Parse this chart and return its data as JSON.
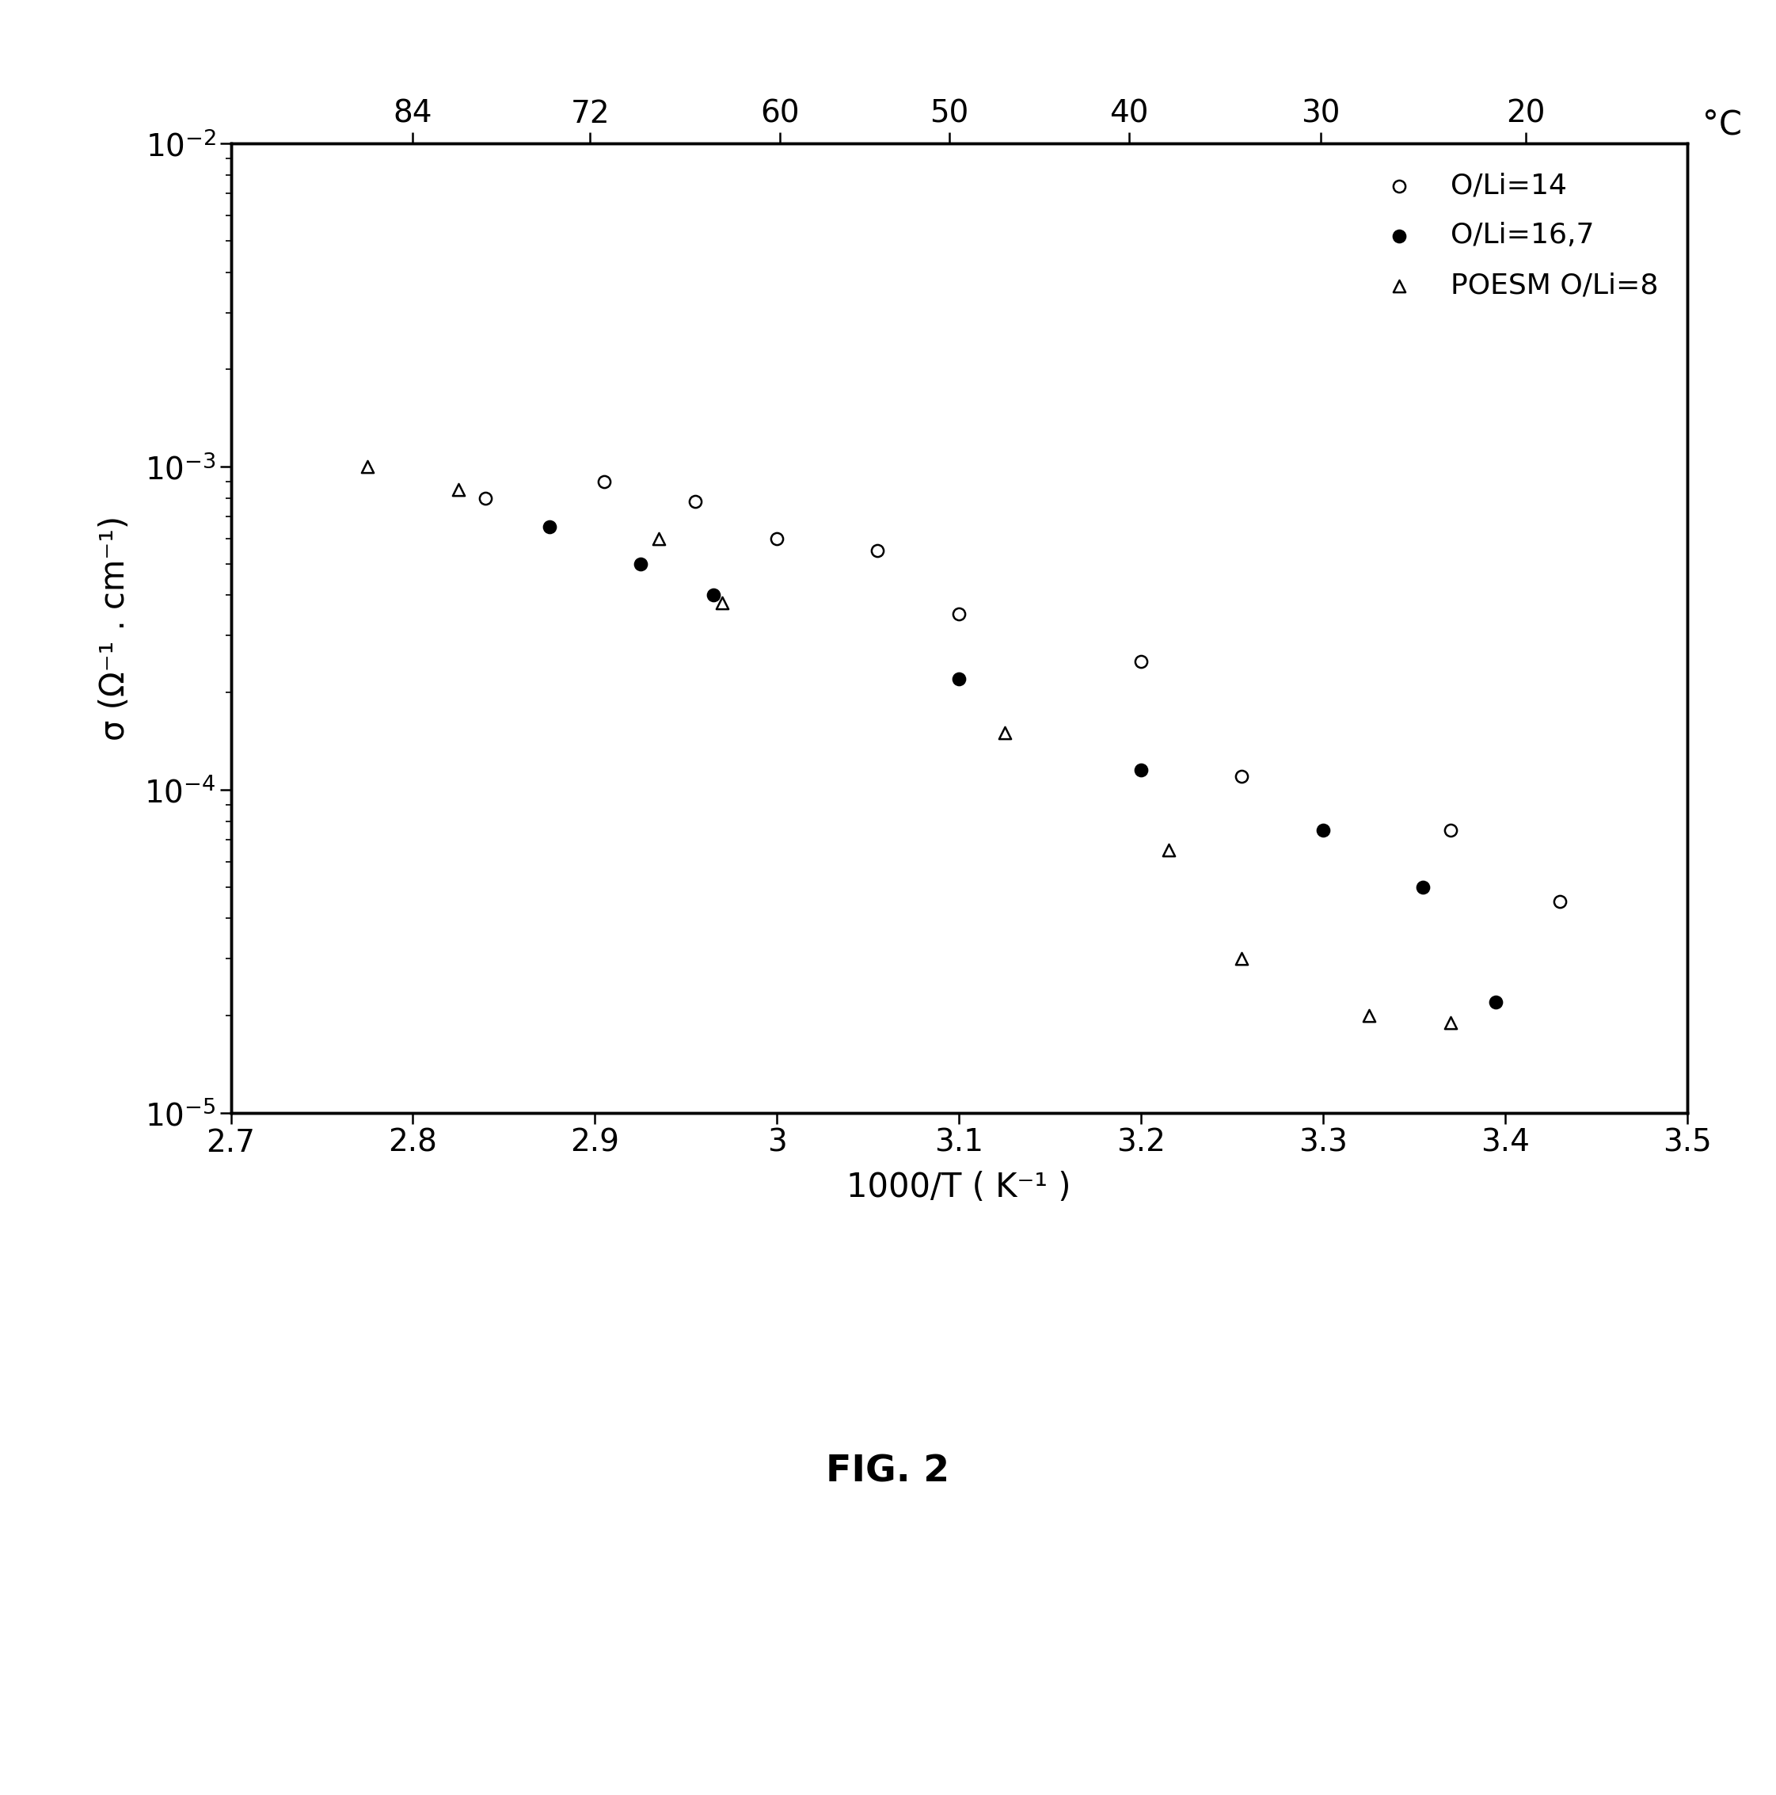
{
  "title": "FIG. 2",
  "xlabel": "1000/T ( K⁻¹ )",
  "ylabel": "σ (Ω⁻¹ . cm⁻¹)",
  "celsius_label": "°C",
  "top_ticks": [
    84,
    72,
    60,
    50,
    40,
    30,
    20
  ],
  "xlim": [
    2.7,
    3.5
  ],
  "ylim_log": [
    -5,
    -2
  ],
  "series": [
    {
      "label": "O/Li=14",
      "marker": "o",
      "facecolor": "white",
      "edgecolor": "black",
      "x": [
        2.84,
        2.905,
        2.955,
        3.0,
        3.055,
        3.1,
        3.2,
        3.255,
        3.37,
        3.43
      ],
      "y": [
        0.0008,
        0.0009,
        0.00078,
        0.0006,
        0.00055,
        0.00035,
        0.00025,
        0.00011,
        7.5e-05,
        4.5e-05
      ]
    },
    {
      "label": "O/Li=16,7",
      "marker": "o",
      "facecolor": "black",
      "edgecolor": "black",
      "x": [
        2.875,
        2.925,
        2.965,
        3.1,
        3.2,
        3.3,
        3.355,
        3.395
      ],
      "y": [
        0.00065,
        0.0005,
        0.0004,
        0.00022,
        0.000115,
        7.5e-05,
        5e-05,
        2.2e-05
      ]
    },
    {
      "label": "POESM O/Li=8",
      "marker": "^",
      "facecolor": "white",
      "edgecolor": "black",
      "x": [
        2.775,
        2.825,
        2.935,
        2.97,
        3.125,
        3.215,
        3.255,
        3.325,
        3.37
      ],
      "y": [
        0.001,
        0.00085,
        0.0006,
        0.00038,
        0.00015,
        6.5e-05,
        3e-05,
        2e-05,
        1.9e-05
      ]
    }
  ],
  "background_color": "white",
  "marker_size": 120,
  "legend_fontsize": 26,
  "tick_fontsize": 28,
  "label_fontsize": 30,
  "title_fontsize": 34,
  "spine_linewidth": 2.5
}
